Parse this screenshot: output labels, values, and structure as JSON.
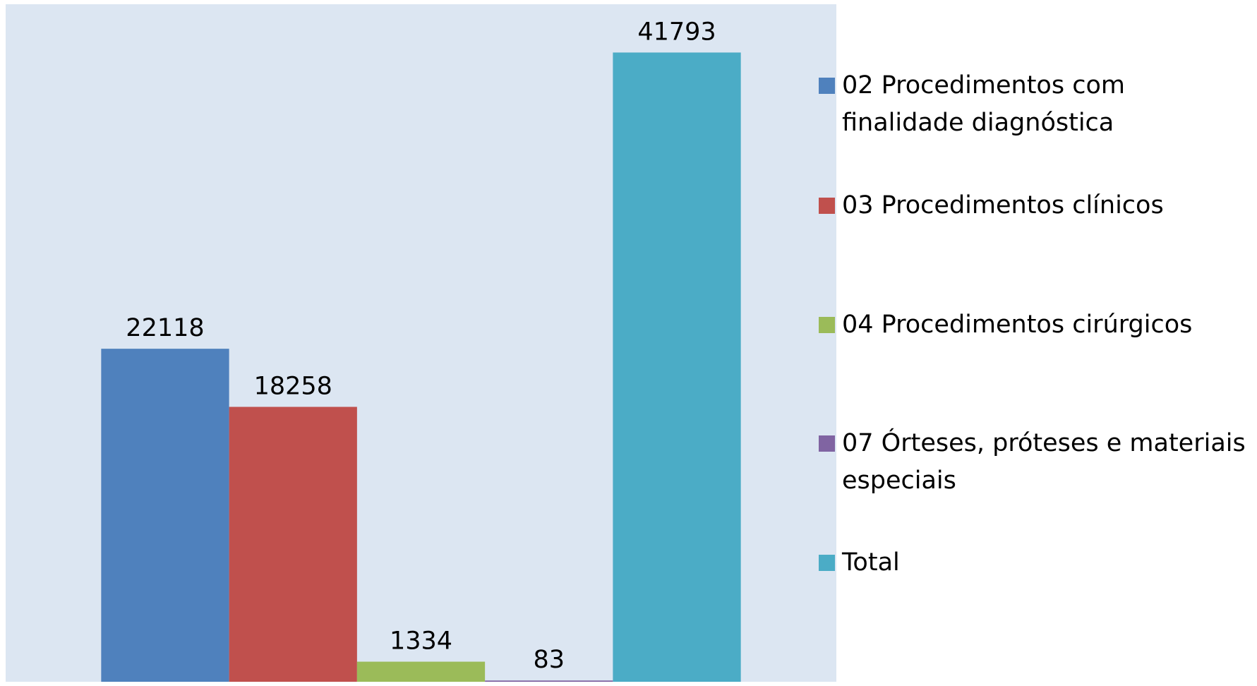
{
  "chart_data": {
    "type": "bar",
    "categories": [
      null
    ],
    "series": [
      {
        "name": "02 Procedimentos com finalidade diagnóstica",
        "color": "#4f81bd",
        "values": [
          22118
        ]
      },
      {
        "name": "03 Procedimentos clínicos",
        "color": "#c0504d",
        "values": [
          18258
        ]
      },
      {
        "name": "04 Procedimentos cirúrgicos",
        "color": "#9bbb59",
        "values": [
          1334
        ]
      },
      {
        "name": "07 Órteses, próteses e materiais especiais",
        "color": "#8064a2",
        "values": [
          83
        ]
      },
      {
        "name": "Total",
        "color": "#4bacc6",
        "values": [
          41793
        ]
      }
    ],
    "ylim": [
      0,
      45000
    ],
    "plot_background": "#dce6f2",
    "legend": "right"
  }
}
